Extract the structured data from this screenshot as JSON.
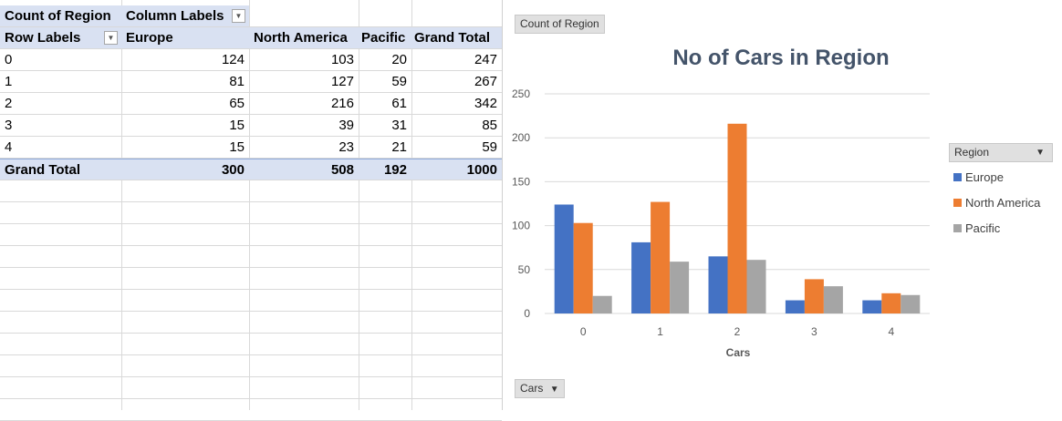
{
  "pivot": {
    "header1": {
      "count_label": "Count of Region",
      "column_labels": "Column Labels"
    },
    "header2": {
      "row_labels": "Row Labels",
      "europe": "Europe",
      "north_america": "North America",
      "pacific": "Pacific",
      "grand_total": "Grand Total"
    },
    "rows": [
      {
        "label": "0",
        "europe": "124",
        "north_america": "103",
        "pacific": "20",
        "total": "247"
      },
      {
        "label": "1",
        "europe": "81",
        "north_america": "127",
        "pacific": "59",
        "total": "267"
      },
      {
        "label": "2",
        "europe": "65",
        "north_america": "216",
        "pacific": "61",
        "total": "342"
      },
      {
        "label": "3",
        "europe": "15",
        "north_america": "39",
        "pacific": "31",
        "total": "85"
      },
      {
        "label": "4",
        "europe": "15",
        "north_america": "23",
        "pacific": "21",
        "total": "59"
      }
    ],
    "grand_total_row": {
      "label": "Grand Total",
      "europe": "300",
      "north_america": "508",
      "pacific": "192",
      "total": "1000"
    }
  },
  "chart_buttons": {
    "value_field": "Count of Region",
    "legend_field": "Region",
    "axis_field": "Cars"
  },
  "chart_data": {
    "type": "bar",
    "title": "No of Cars in Region",
    "xlabel": "Cars",
    "ylabel": "",
    "categories": [
      "0",
      "1",
      "2",
      "3",
      "4"
    ],
    "series": [
      {
        "name": "Europe",
        "values": [
          124,
          81,
          65,
          15,
          15
        ],
        "color": "#4472c4"
      },
      {
        "name": "North America",
        "values": [
          103,
          127,
          216,
          39,
          23
        ],
        "color": "#ed7d31"
      },
      {
        "name": "Pacific",
        "values": [
          20,
          59,
          61,
          31,
          21
        ],
        "color": "#a5a5a5"
      }
    ],
    "yticks": [
      "0",
      "50",
      "100",
      "150",
      "200",
      "250"
    ],
    "ylim": [
      0,
      250
    ],
    "grid": true,
    "legend_position": "right"
  }
}
